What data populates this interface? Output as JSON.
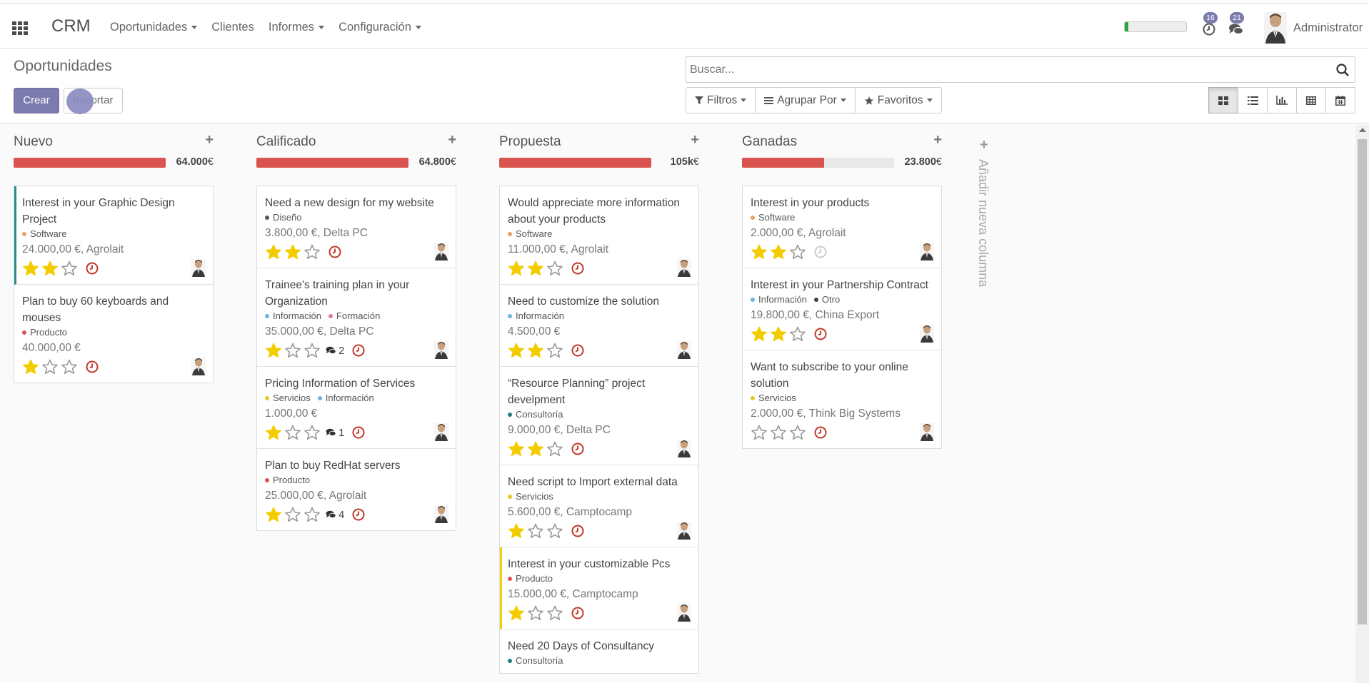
{
  "navbar": {
    "brand": "CRM",
    "menu": [
      {
        "label": "Oportunidades",
        "dropdown": true
      },
      {
        "label": "Clientes",
        "dropdown": false
      },
      {
        "label": "Informes",
        "dropdown": true
      },
      {
        "label": "Configuración",
        "dropdown": true
      }
    ],
    "activities_count": "16",
    "messages_count": "21",
    "user": "Administrator"
  },
  "control_panel": {
    "title": "Oportunidades",
    "create_label": "Crear",
    "import_label": "Importar",
    "search_placeholder": "Buscar...",
    "filters_label": "Filtros",
    "group_by_label": "Agrupar Por",
    "favorites_label": "Favoritos"
  },
  "kanban": {
    "add_column_label": "Añadir nueva columna",
    "columns": [
      {
        "title": "Nuevo",
        "total": "64.000",
        "currency": "€",
        "progress": 100,
        "cards": [
          {
            "title": "Interest in your Graphic Design Project",
            "tags": [
              {
                "name": "Software",
                "color": "#e8a165"
              }
            ],
            "amount": "24.000,00 €, Agrolait",
            "stars": 2,
            "messages": "",
            "accent": "teal",
            "activity_color": "#c0392b"
          },
          {
            "title": "Plan to buy 60 keyboards and mouses",
            "tags": [
              {
                "name": "Producto",
                "color": "#d9534f"
              }
            ],
            "amount": "40.000,00 €",
            "stars": 1,
            "messages": "",
            "accent": "",
            "activity_color": "#c0392b"
          }
        ]
      },
      {
        "title": "Calificado",
        "total": "64.800",
        "currency": "€",
        "progress": 100,
        "cards": [
          {
            "title": "Need a new design for my website",
            "tags": [
              {
                "name": "Diseño",
                "color": "#555555"
              }
            ],
            "amount": "3.800,00 €, Delta PC",
            "stars": 2,
            "messages": "",
            "accent": "",
            "activity_color": "#c0392b"
          },
          {
            "title": "Trainee's training plan in your Organization",
            "tags": [
              {
                "name": "Información",
                "color": "#6cb4d9"
              },
              {
                "name": "Formación",
                "color": "#e27b8e"
              }
            ],
            "amount": "35.000,00 €, Delta PC",
            "stars": 1,
            "messages": "2",
            "accent": "",
            "activity_color": "#c0392b"
          },
          {
            "title": "Pricing Information of Services",
            "tags": [
              {
                "name": "Servicios",
                "color": "#e6c925"
              },
              {
                "name": "Información",
                "color": "#6cb4d9"
              }
            ],
            "amount": "1.000,00 €",
            "stars": 1,
            "messages": "1",
            "accent": "",
            "activity_color": "#c0392b"
          },
          {
            "title": "Plan to buy RedHat servers",
            "tags": [
              {
                "name": "Producto",
                "color": "#d9534f"
              }
            ],
            "amount": "25.000,00 €, Agrolait",
            "stars": 1,
            "messages": "4",
            "accent": "",
            "activity_color": "#c0392b"
          }
        ]
      },
      {
        "title": "Propuesta",
        "total": "105k",
        "currency": "€",
        "progress": 100,
        "cards": [
          {
            "title": "Would appreciate more information about your products",
            "tags": [
              {
                "name": "Software",
                "color": "#e8a165"
              }
            ],
            "amount": "11.000,00 €, Agrolait",
            "stars": 2,
            "messages": "",
            "accent": "",
            "activity_color": "#c0392b"
          },
          {
            "title": "Need to customize the solution",
            "tags": [
              {
                "name": "Información",
                "color": "#6cb4d9"
              }
            ],
            "amount": "4.500,00 €",
            "stars": 2,
            "messages": "",
            "accent": "",
            "activity_color": "#c0392b"
          },
          {
            "title": "“Resource Planning” project develpment",
            "tags": [
              {
                "name": "Consultoría",
                "color": "#1f7f7f"
              }
            ],
            "amount": "9.000,00 €, Delta PC",
            "stars": 2,
            "messages": "",
            "accent": "",
            "activity_color": "#c0392b"
          },
          {
            "title": "Need script to Import external data",
            "tags": [
              {
                "name": "Servicios",
                "color": "#e6c925"
              }
            ],
            "amount": "5.600,00 €, Camptocamp",
            "stars": 1,
            "messages": "",
            "accent": "",
            "activity_color": "#c0392b"
          },
          {
            "title": "Interest in your customizable Pcs",
            "tags": [
              {
                "name": "Producto",
                "color": "#d9534f"
              }
            ],
            "amount": "15.000,00 €, Camptocamp",
            "stars": 1,
            "messages": "",
            "accent": "yellow",
            "activity_color": "#c0392b"
          },
          {
            "title": "Need 20 Days of Consultancy",
            "tags": [
              {
                "name": "Consultoría",
                "color": "#1f7f7f"
              }
            ],
            "amount": "",
            "stars": 0,
            "messages": "",
            "accent": "",
            "activity_color": "#c0392b"
          }
        ]
      },
      {
        "title": "Ganadas",
        "total": "23.800",
        "currency": "€",
        "progress": 54,
        "cards": [
          {
            "title": "Interest in your products",
            "tags": [
              {
                "name": "Software",
                "color": "#e8a165"
              }
            ],
            "amount": "2.000,00 €, Agrolait",
            "stars": 2,
            "messages": "",
            "accent": "",
            "activity_color": "#cccccc"
          },
          {
            "title": "Interest in your Partnership Contract",
            "tags": [
              {
                "name": "Información",
                "color": "#6cb4d9"
              },
              {
                "name": "Otro",
                "color": "#444444"
              }
            ],
            "amount": "19.800,00 €, China Export",
            "stars": 2,
            "messages": "",
            "accent": "",
            "activity_color": "#c0392b"
          },
          {
            "title": "Want to subscribe to your online solution",
            "tags": [
              {
                "name": "Servicios",
                "color": "#e6c925"
              }
            ],
            "amount": "2.000,00 €, Think Big Systems",
            "stars": 0,
            "messages": "",
            "accent": "",
            "activity_color": "#c0392b"
          }
        ]
      }
    ]
  }
}
